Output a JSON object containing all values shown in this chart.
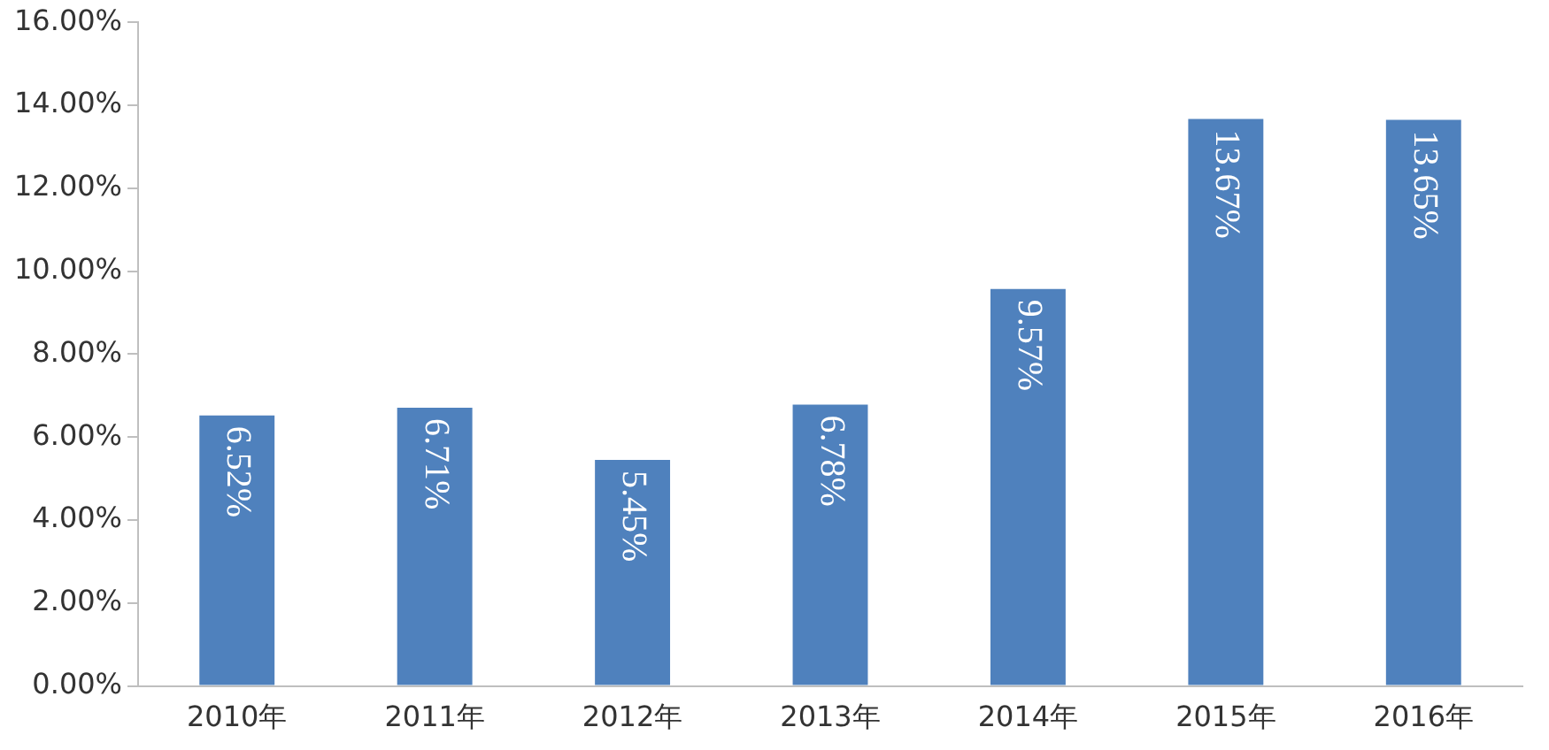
{
  "chart_data": {
    "type": "bar",
    "categories": [
      "2010年",
      "2011年",
      "2012年",
      "2013年",
      "2014年",
      "2015年",
      "2016年"
    ],
    "values": [
      6.52,
      6.71,
      5.45,
      6.78,
      9.57,
      13.67,
      13.65
    ],
    "value_labels": [
      "6.52%",
      "6.71%",
      "5.45%",
      "6.78%",
      "9.57%",
      "13.67%",
      "13.65%"
    ],
    "color": "#4f81bd",
    "ylim": [
      0,
      16
    ],
    "yticks": [
      {
        "value": 0,
        "label": "0.00%"
      },
      {
        "value": 2,
        "label": "2.00%"
      },
      {
        "value": 4,
        "label": "4.00%"
      },
      {
        "value": 6,
        "label": "6.00%"
      },
      {
        "value": 8,
        "label": "8.00%"
      },
      {
        "value": 10,
        "label": "10.00%"
      },
      {
        "value": 12,
        "label": "12.00%"
      },
      {
        "value": 14,
        "label": "14.00%"
      },
      {
        "value": 16,
        "label": "16.00%"
      }
    ],
    "grid": false
  }
}
